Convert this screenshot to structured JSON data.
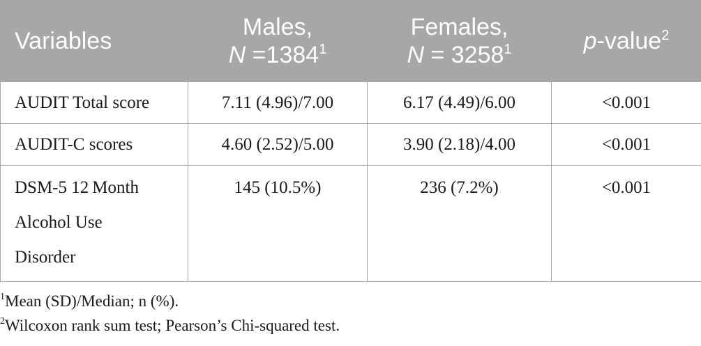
{
  "table": {
    "headers": {
      "variables": "Variables",
      "males_label": "Males,",
      "males_n_letter": "N",
      "males_n_value": " =1384",
      "males_sup": "1",
      "females_label": "Females,",
      "females_n_letter": "N",
      "females_n_value": " = 3258",
      "females_sup": "1",
      "pvalue_p": "p",
      "pvalue_rest": "-value",
      "pvalue_sup": "2"
    },
    "rows": [
      {
        "variable": "AUDIT Total score",
        "males": "7.11 (4.96)/7.00",
        "females": "6.17 (4.49)/6.00",
        "p": "<0.001"
      },
      {
        "variable": "AUDIT-C scores",
        "males": "4.60 (2.52)/5.00",
        "females": "3.90 (2.18)/4.00",
        "p": "<0.001"
      },
      {
        "variable_lines": [
          "DSM-5 12 Month",
          "Alcohol Use",
          "Disorder"
        ],
        "males": "145 (10.5%)",
        "females": "236 (7.2%)",
        "p": "<0.001"
      }
    ]
  },
  "footnotes": [
    {
      "mark": "1",
      "text": "Mean (SD)/Median; n (%)."
    },
    {
      "mark": "2",
      "text": "Wilcoxon rank sum test; Pearson’s Chi-squared test."
    }
  ],
  "colors": {
    "header_background": "#a7a7a7",
    "header_text": "#ffffff",
    "border": "#a8a8a8",
    "body_text": "#1a1a1a"
  }
}
